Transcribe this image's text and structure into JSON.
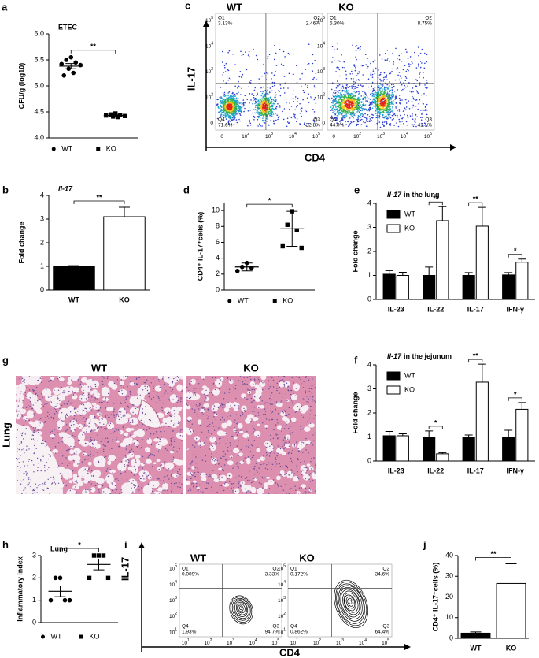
{
  "chart_data": [
    {
      "panel": "a",
      "type": "dot",
      "title": "ETEC",
      "ylabel": "CFU/g (log10)",
      "categories": [
        "WT",
        "KO"
      ],
      "markers": [
        "circle",
        "square"
      ],
      "points": [
        [
          5.55,
          5.5,
          5.45,
          5.42,
          5.4,
          5.33,
          5.25,
          5.2
        ],
        [
          4.47,
          4.45,
          4.44,
          4.43,
          4.42,
          4.41,
          4.4
        ]
      ],
      "means": [
        5.38,
        4.43
      ],
      "errors": [
        0.05,
        0.02
      ],
      "ylim": [
        4,
        6
      ],
      "yticks": [
        {
          "value": 4,
          "label": "4.0"
        },
        {
          "value": 4.5,
          "label": "4.5"
        },
        {
          "value": 5,
          "label": "5.0"
        },
        {
          "value": 5.5,
          "label": "5.5"
        },
        {
          "value": 6,
          "label": "6.0"
        }
      ],
      "annotations": [
        {
          "text": "**",
          "between": [
            0,
            1
          ]
        }
      ]
    },
    {
      "panel": "b",
      "type": "bar",
      "title": "Il-17",
      "italic": true,
      "ylabel": "Fold change",
      "categories": [
        "WT",
        "KO"
      ],
      "values": [
        1,
        3.1
      ],
      "errors": [
        0.03,
        0.4
      ],
      "colors": [
        "#000000",
        "#ffffff"
      ],
      "ylim": [
        0,
        4
      ],
      "yticks": [
        0,
        1,
        2,
        3,
        4
      ],
      "annotations": [
        {
          "text": "**",
          "between": [
            0,
            1
          ]
        }
      ]
    },
    {
      "panel": "d",
      "type": "dot",
      "ylabel": "CD4⁺ IL-17⁺cells (%)",
      "categories": [
        "WT",
        "KO"
      ],
      "markers": [
        "circle",
        "square"
      ],
      "points": [
        [
          3.4,
          2.9,
          2.8,
          2.4
        ],
        [
          9.9,
          8.2,
          7.5,
          5.5,
          5.3
        ]
      ],
      "means": [
        2.9,
        7.7
      ],
      "errors": [
        0.5,
        2.2
      ],
      "ylim": [
        0,
        11
      ],
      "yticks": [
        0,
        2,
        4,
        6,
        8,
        10
      ],
      "annotations": [
        {
          "text": "*",
          "between": [
            0,
            1
          ]
        }
      ]
    },
    {
      "panel": "e",
      "type": "grouped_bar",
      "title": {
        "italic": "Il-17",
        "text": "in the lung"
      },
      "ylabel": "Fold change",
      "categories": [
        "IL-23",
        "IL-22",
        "IL-17",
        "IFN-γ"
      ],
      "series": [
        {
          "name": "WT",
          "color": "#000000",
          "values": [
            1.05,
            1.0,
            1.0,
            1.02
          ],
          "errors": [
            0.15,
            0.35,
            0.12,
            0.1
          ]
        },
        {
          "name": "KO",
          "color": "#ffffff",
          "values": [
            1.0,
            3.28,
            3.05,
            1.55
          ],
          "errors": [
            0.13,
            0.58,
            0.78,
            0.13
          ]
        }
      ],
      "ylim": [
        0,
        4
      ],
      "yticks": [
        0,
        1,
        2,
        3,
        4
      ],
      "legend": "upper left",
      "annotations": [
        {
          "text": "**",
          "group": 1
        },
        {
          "text": "**",
          "group": 2
        },
        {
          "text": "*",
          "group": 3
        }
      ]
    },
    {
      "panel": "f",
      "type": "grouped_bar",
      "title": {
        "italic": "Il-17",
        "text": "in the jejunum"
      },
      "ylabel": "Fold change",
      "categories": [
        "IL-23",
        "IL-22",
        "IL-17",
        "IFN-γ"
      ],
      "series": [
        {
          "name": "WT",
          "color": "#000000",
          "values": [
            1.05,
            1.0,
            1.0,
            1.0
          ],
          "errors": [
            0.18,
            0.25,
            0.08,
            0.28
          ]
        },
        {
          "name": "KO",
          "color": "#ffffff",
          "values": [
            1.05,
            0.3,
            3.28,
            2.15
          ],
          "errors": [
            0.08,
            0.05,
            0.75,
            0.28
          ]
        }
      ],
      "ylim": [
        0,
        4
      ],
      "yticks": [
        0,
        1,
        2,
        3,
        4
      ],
      "legend": "upper left",
      "annotations": [
        {
          "text": "*",
          "group": 1
        },
        {
          "text": "**",
          "group": 2
        },
        {
          "text": "*",
          "group": 3
        }
      ]
    },
    {
      "panel": "h",
      "type": "dot",
      "title": "Lung",
      "ylabel": "Inflammatory index",
      "categories": [
        "WT",
        "KO"
      ],
      "markers": [
        "circle",
        "square"
      ],
      "points": [
        [
          2,
          2,
          1,
          1,
          1
        ],
        [
          3,
          3,
          3,
          2,
          2
        ]
      ],
      "means": [
        1.4,
        2.6
      ],
      "errors": [
        0.24,
        0.24
      ],
      "ylim": [
        0,
        3
      ],
      "yticks": [
        0,
        1,
        2,
        3
      ],
      "annotations": [
        {
          "text": "*",
          "between": [
            0,
            1
          ]
        }
      ]
    },
    {
      "panel": "j",
      "type": "bar",
      "ylabel": "CD4⁺ IL-17⁺cells (%)",
      "categories": [
        "WT",
        "KO"
      ],
      "values": [
        2.5,
        26.5
      ],
      "errors": [
        0.6,
        9.5
      ],
      "colors": [
        "#000000",
        "#ffffff"
      ],
      "ylim": [
        0,
        40
      ],
      "yticks": [
        0,
        10,
        20,
        30,
        40
      ],
      "annotations": [
        {
          "text": "**",
          "between": [
            0,
            1
          ]
        }
      ]
    }
  ],
  "flow": [
    {
      "panel": "c",
      "ylabel": "IL-17",
      "xlabel": "CD4",
      "style": "density",
      "ticks": [
        {
          "base": "0"
        },
        {
          "base": "10",
          "sup": "2"
        },
        {
          "base": "10",
          "sup": "3"
        },
        {
          "base": "10",
          "sup": "4"
        },
        {
          "base": "10",
          "sup": "5"
        }
      ],
      "plots": [
        {
          "name": "WT",
          "quadrants": [
            {
              "name": "Q1",
              "value": "3.13%"
            },
            {
              "name": "Q2",
              "value": "2.46%"
            },
            {
              "name": "Q3",
              "value": "22.8%"
            },
            {
              "name": "Q4",
              "value": "71.6%"
            }
          ]
        },
        {
          "name": "KO",
          "quadrants": [
            {
              "name": "Q1",
              "value": "5.30%"
            },
            {
              "name": "Q2",
              "value": "8.75%"
            },
            {
              "name": "Q3",
              "value": "41.1%"
            },
            {
              "name": "Q4",
              "value": "44.8%"
            }
          ]
        }
      ]
    },
    {
      "panel": "i",
      "ylabel": "IL-17",
      "xlabel": "CD4",
      "style": "contour",
      "ticks": [
        {
          "base": "10",
          "sup": "1"
        },
        {
          "base": "10",
          "sup": "2"
        },
        {
          "base": "10",
          "sup": "3"
        },
        {
          "base": "10",
          "sup": "4"
        },
        {
          "base": "10",
          "sup": "5"
        }
      ],
      "plots": [
        {
          "name": "WT",
          "quadrants": [
            {
              "name": "Q1",
              "value": "0.009%"
            },
            {
              "name": "Q2",
              "value": "3.33%"
            },
            {
              "name": "Q3",
              "value": "94.7%"
            },
            {
              "name": "Q4",
              "value": "1.93%"
            }
          ]
        },
        {
          "name": "KO",
          "quadrants": [
            {
              "name": "Q1",
              "value": "0.172%"
            },
            {
              "name": "Q2",
              "value": "34.6%"
            },
            {
              "name": "Q3",
              "value": "64.4%"
            },
            {
              "name": "Q4",
              "value": "0.862%"
            }
          ]
        }
      ]
    }
  ],
  "histology": {
    "panel": "g",
    "side_label": "Lung",
    "images": [
      {
        "name": "WT"
      },
      {
        "name": "KO"
      }
    ]
  }
}
